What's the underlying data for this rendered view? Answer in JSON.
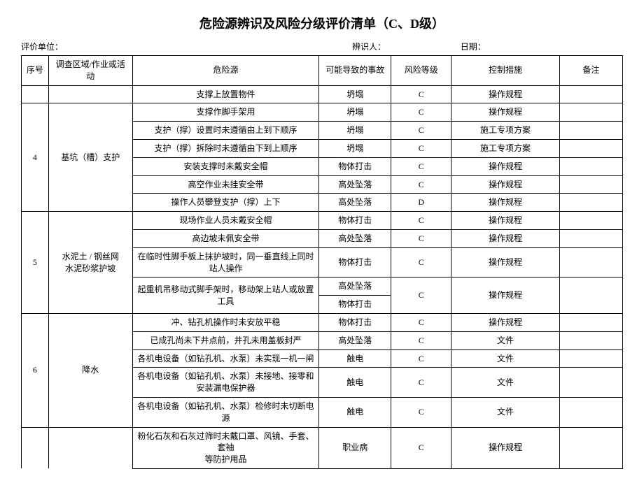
{
  "title": "危险源辨识及风险分级评价清单（C、D级）",
  "meta": {
    "unit_label": "评价单位：",
    "identifier_label": "辨识人：",
    "date_label": "日期："
  },
  "headers": {
    "seq": "序号",
    "area": "调查区域/作业或活动",
    "hazard": "危险源",
    "accident": "可能导致的事故",
    "risk": "风险等级",
    "control": "控制措施",
    "note": "备注"
  },
  "rows": {
    "r0": {
      "hazard": "支撑上放置物件",
      "accident": "坍塌",
      "risk": "C",
      "control": "操作规程"
    },
    "g4": {
      "seq": "4",
      "area": "基坑（槽）支护"
    },
    "r1": {
      "hazard": "支撑作脚手架用",
      "accident": "坍塌",
      "risk": "C",
      "control": "操作规程"
    },
    "r2": {
      "hazard": "支护（撑）设置时未遵循由上到下顺序",
      "accident": "坍塌",
      "risk": "C",
      "control": "施工专项方案"
    },
    "r3": {
      "hazard": "支护（撑）拆除时未遵循由下到上顺序",
      "accident": "坍塌",
      "risk": "C",
      "control": "施工专项方案"
    },
    "r4": {
      "hazard": "安装支撑时未戴安全帽",
      "accident": "物体打击",
      "risk": "C",
      "control": "操作规程"
    },
    "r5": {
      "hazard": "高空作业未挂安全带",
      "accident": "高处坠落",
      "risk": "C",
      "control": "操作规程"
    },
    "r6": {
      "hazard": "操作人员攀登支护（撑）上下",
      "accident": "高处坠落",
      "risk": "D",
      "control": "操作规程"
    },
    "g5": {
      "seq": "5",
      "area": "水泥土 / 钢丝网\n水泥砂浆护坡"
    },
    "r7": {
      "hazard": "现场作业人员未戴安全帽",
      "accident": "物体打击",
      "risk": "C",
      "control": "操作规程"
    },
    "r8": {
      "hazard": "高边坡未佩安全带",
      "accident": "高处坠落",
      "risk": "C",
      "control": "操作规程"
    },
    "r9": {
      "hazard": "在临时性脚手板上抹护坡时，同一垂直线上同时站人操作",
      "accident": "物体打击",
      "risk": "C",
      "control": "操作规程"
    },
    "r10": {
      "hazard": "起重机吊移动式脚手架时，移动架上站人或放置工具",
      "risk": "C",
      "control": "操作规程"
    },
    "r10a": {
      "accident": "高处坠落"
    },
    "r10b": {
      "accident": "物体打击"
    },
    "g6": {
      "seq": "6",
      "area": "降水"
    },
    "r11": {
      "hazard": "冲、钻孔机操作时未安放平稳",
      "accident": "物体打击",
      "risk": "C",
      "control": "操作规程"
    },
    "r12": {
      "hazard": "已成孔尚未下井点前，井孔未用盖板封严",
      "accident": "高处坠落",
      "risk": "C",
      "control": "文件"
    },
    "r13": {
      "hazard": "各机电设备（如钻孔机、水泵）未实现一机一闸",
      "accident": "触电",
      "risk": "C",
      "control": "文件"
    },
    "r14": {
      "hazard": "各机电设备（如钻孔机、水泵）未接地、接零和\n安装漏电保护器",
      "accident": "触电",
      "risk": "C",
      "control": "文件"
    },
    "r15": {
      "hazard": "各机电设备（如钻孔机、水泵）检修时未切断电源",
      "accident": "触电",
      "risk": "C",
      "control": "文件"
    },
    "r16": {
      "hazard": "粉化石灰和石灰过筛时未戴口罩、风镜、手套、套袖\n等防护用品",
      "accident": "职业病",
      "risk": "C",
      "control": "操作规程"
    }
  }
}
